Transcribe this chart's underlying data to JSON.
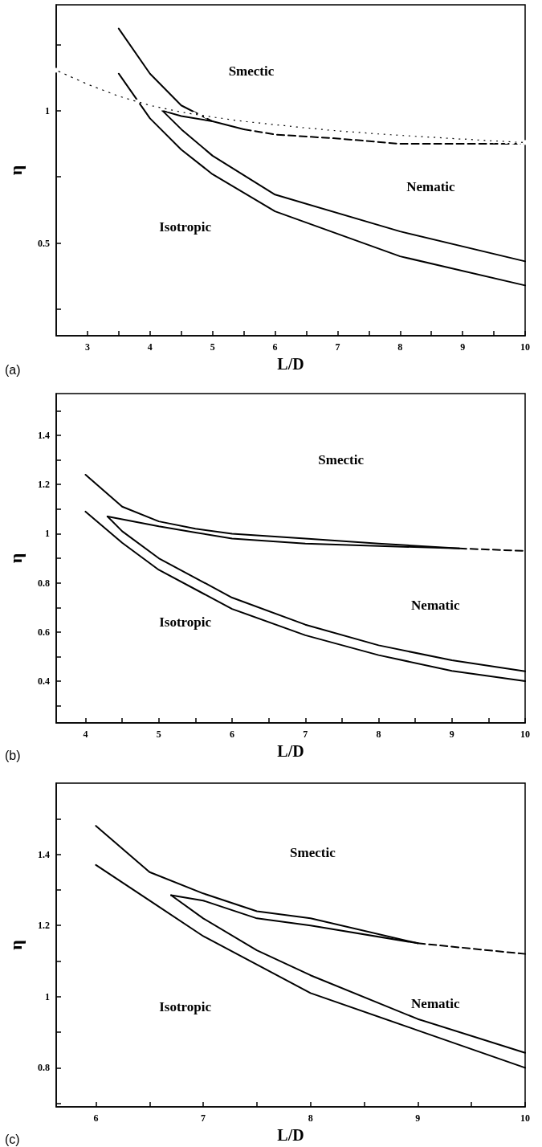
{
  "chart_data": [
    {
      "type": "line",
      "xlabel": "L/D",
      "ylabel": "η",
      "xlim": [
        2.5,
        10
      ],
      "ylim": [
        0.15,
        1.4
      ],
      "xticks": [
        3,
        {
          "value": 3.5,
          "label": null
        },
        4,
        {
          "value": 4.5,
          "label": null
        },
        5,
        {
          "value": 5.5,
          "label": null
        },
        6,
        {
          "value": 6.5,
          "label": null
        },
        7,
        {
          "value": 7.5,
          "label": null
        },
        8,
        {
          "value": 8.5,
          "label": null
        },
        9,
        {
          "value": 9.5,
          "label": null
        },
        10
      ],
      "yticks": [
        {
          "value": 0.25,
          "label": null
        },
        0.5,
        {
          "value": 0.75,
          "label": null
        },
        1,
        {
          "value": 1.25,
          "label": null
        }
      ],
      "grid": false,
      "series": [
        {
          "color": "#000000",
          "line_style": "solid",
          "marker": "none",
          "x": [
            3.5,
            4,
            4.5,
            5,
            5.5
          ],
          "values": [
            1.31,
            1.14,
            1.02,
            0.96,
            0.93
          ]
        },
        {
          "color": "#000000",
          "line_style": "solid",
          "marker": "none",
          "x": [
            4.2,
            4.5,
            5
          ],
          "values": [
            1.0,
            0.98,
            0.96
          ]
        },
        {
          "color": "#000000",
          "line_style": "dashed",
          "marker": "none",
          "x": [
            5.5,
            6,
            7,
            8,
            9,
            10
          ],
          "values": [
            0.93,
            0.91,
            0.895,
            0.875,
            0.875,
            0.875
          ]
        },
        {
          "color": "#000000",
          "line_style": "solid",
          "marker": "none",
          "x": [
            4.2,
            4.5,
            5,
            6,
            8,
            10
          ],
          "values": [
            1.0,
            0.93,
            0.83,
            0.683,
            0.544,
            0.431
          ]
        },
        {
          "color": "#000000",
          "line_style": "solid",
          "marker": "none",
          "x": [
            3.5,
            4,
            4.5,
            5,
            6,
            8,
            10
          ],
          "values": [
            1.14,
            0.971,
            0.853,
            0.76,
            0.62,
            0.45,
            0.34
          ]
        },
        {
          "color": "#000000",
          "line_style": "solid",
          "marker": "circle",
          "x": [
            2.5,
            2.6,
            2.7,
            2.8,
            2.9,
            3.0,
            3.1,
            3.2,
            3.3,
            3.4,
            3.5,
            3.6,
            3.7,
            3.8,
            3.9,
            4.0,
            4.1,
            4.2,
            4.3,
            4.4,
            4.5,
            4.6,
            4.7,
            4.8,
            4.9,
            5.0,
            5.1,
            5.2,
            5.3,
            5.4,
            5.5,
            5.6,
            5.7,
            5.8,
            5.9,
            6.0,
            6.1,
            6.2,
            6.3,
            6.4,
            6.5,
            6.6,
            6.7,
            6.8,
            6.9,
            7.0,
            7.1,
            7.2,
            7.3,
            7.4,
            7.5,
            7.6,
            7.7,
            7.8,
            7.9,
            8.0,
            8.1,
            8.2,
            8.3,
            8.4,
            8.5,
            8.6,
            8.7,
            8.8,
            8.9,
            9.0,
            9.1,
            9.2,
            9.3,
            9.4,
            9.5,
            9.6,
            9.7,
            9.8,
            9.9,
            10.0
          ],
          "values": [
            1.153,
            1.142,
            1.132,
            1.121,
            1.111,
            1.1,
            1.091,
            1.082,
            1.073,
            1.064,
            1.055,
            1.048,
            1.041,
            1.034,
            1.027,
            1.02,
            1.015,
            1.01,
            1.005,
            1.0,
            0.995,
            0.991,
            0.987,
            0.984,
            0.98,
            0.976,
            0.973,
            0.97,
            0.966,
            0.963,
            0.96,
            0.957,
            0.955,
            0.952,
            0.95,
            0.947,
            0.945,
            0.942,
            0.94,
            0.937,
            0.935,
            0.933,
            0.931,
            0.928,
            0.926,
            0.924,
            0.922,
            0.92,
            0.919,
            0.917,
            0.915,
            0.913,
            0.912,
            0.91,
            0.909,
            0.907,
            0.906,
            0.904,
            0.903,
            0.901,
            0.9,
            0.899,
            0.897,
            0.896,
            0.894,
            0.893,
            0.892,
            0.89,
            0.889,
            0.887,
            0.886,
            0.885,
            0.884,
            0.882,
            0.881,
            0.88
          ]
        }
      ],
      "annotations": [
        "Smectic",
        "Nematic",
        "Isotropic",
        "(a)"
      ]
    },
    {
      "type": "line",
      "xlabel": "L/D",
      "ylabel": "η",
      "xlim": [
        3.6,
        10
      ],
      "ylim": [
        0.23,
        1.57
      ],
      "xticks": [
        4,
        {
          "value": 4.5,
          "label": null
        },
        5,
        {
          "value": 5.5,
          "label": null
        },
        6,
        {
          "value": 6.5,
          "label": null
        },
        7,
        {
          "value": 7.5,
          "label": null
        },
        8,
        {
          "value": 8.5,
          "label": null
        },
        9,
        {
          "value": 9.5,
          "label": null
        },
        10
      ],
      "yticks": [
        {
          "value": 0.3,
          "label": null
        },
        0.4,
        {
          "value": 0.5,
          "label": null
        },
        0.6,
        {
          "value": 0.7,
          "label": null
        },
        0.8,
        {
          "value": 0.9,
          "label": null
        },
        1,
        {
          "value": 1.1,
          "label": null
        },
        1.2,
        {
          "value": 1.3,
          "label": null
        },
        1.4,
        {
          "value": 1.5,
          "label": null
        }
      ],
      "grid": false,
      "series": [
        {
          "color": "#000000",
          "line_style": "solid",
          "marker": "none",
          "x": [
            4,
            4.5,
            5,
            5.5,
            6,
            7,
            8,
            9.1
          ],
          "values": [
            1.24,
            1.11,
            1.05,
            1.02,
            1.0,
            0.98,
            0.96,
            0.94
          ]
        },
        {
          "color": "#000000",
          "line_style": "solid",
          "marker": "none",
          "x": [
            4.3,
            5,
            5.5,
            6,
            7,
            8,
            9.1
          ],
          "values": [
            1.07,
            1.03,
            1.005,
            0.98,
            0.96,
            0.95,
            0.94
          ]
        },
        {
          "color": "#000000",
          "line_style": "dashed",
          "marker": "none",
          "x": [
            9.1,
            10
          ],
          "values": [
            0.94,
            0.93
          ]
        },
        {
          "color": "#000000",
          "line_style": "solid",
          "marker": "none",
          "x": [
            4.3,
            4.5,
            5,
            6,
            7,
            8,
            9,
            10
          ],
          "values": [
            1.07,
            1.01,
            0.9,
            0.74,
            0.63,
            0.546,
            0.485,
            0.44
          ]
        },
        {
          "color": "#000000",
          "line_style": "solid",
          "marker": "none",
          "x": [
            4,
            4.5,
            5,
            6,
            7,
            8,
            9,
            10
          ],
          "values": [
            1.09,
            0.963,
            0.853,
            0.694,
            0.587,
            0.506,
            0.442,
            0.4
          ]
        }
      ],
      "annotations": [
        "Smectic",
        "Nematic",
        "Isotropic",
        "(b)"
      ]
    },
    {
      "type": "line",
      "xlabel": "L/D",
      "ylabel": "η",
      "xlim": [
        5.63,
        10
      ],
      "ylim": [
        0.69,
        1.6
      ],
      "xticks": [
        6,
        {
          "value": 6.5,
          "label": null
        },
        7,
        {
          "value": 7.5,
          "label": null
        },
        8,
        {
          "value": 8.5,
          "label": null
        },
        9,
        {
          "value": 9.5,
          "label": null
        },
        10
      ],
      "yticks": [
        {
          "value": 0.7,
          "label": null
        },
        0.8,
        {
          "value": 0.9,
          "label": null
        },
        1,
        {
          "value": 1.1,
          "label": null
        },
        1.2,
        {
          "value": 1.3,
          "label": null
        },
        1.4,
        {
          "value": 1.5,
          "label": null
        }
      ],
      "grid": false,
      "series": [
        {
          "color": "#000000",
          "line_style": "solid",
          "marker": "none",
          "x": [
            6,
            6.5,
            7,
            7.5,
            8,
            9
          ],
          "values": [
            1.48,
            1.35,
            1.29,
            1.24,
            1.22,
            1.15
          ]
        },
        {
          "color": "#000000",
          "line_style": "solid",
          "marker": "none",
          "x": [
            6.7,
            7,
            7.5,
            8,
            9
          ],
          "values": [
            1.285,
            1.27,
            1.22,
            1.2,
            1.15
          ]
        },
        {
          "color": "#000000",
          "line_style": "dashed",
          "marker": "none",
          "x": [
            9,
            10
          ],
          "values": [
            1.15,
            1.12
          ]
        },
        {
          "color": "#000000",
          "line_style": "solid",
          "marker": "none",
          "x": [
            6.7,
            7,
            7.5,
            8,
            9,
            10
          ],
          "values": [
            1.285,
            1.22,
            1.13,
            1.06,
            0.937,
            0.842
          ]
        },
        {
          "color": "#000000",
          "line_style": "solid",
          "marker": "none",
          "x": [
            6,
            6.5,
            7,
            7.5,
            8,
            9,
            10
          ],
          "values": [
            1.37,
            1.27,
            1.17,
            1.09,
            1.01,
            0.905,
            0.8
          ]
        }
      ],
      "annotations": [
        "Smectic",
        "Nematic",
        "Isotropic",
        "(c)"
      ]
    }
  ]
}
